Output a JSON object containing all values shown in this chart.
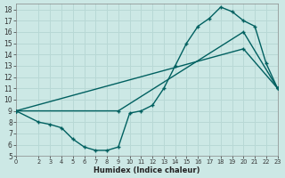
{
  "xlabel": "Humidex (Indice chaleur)",
  "bg_color": "#cce8e5",
  "grid_color": "#b8d8d5",
  "line_color": "#006060",
  "xlim": [
    0,
    23
  ],
  "ylim": [
    5,
    18.5
  ],
  "xticks": [
    0,
    2,
    3,
    4,
    5,
    6,
    7,
    8,
    9,
    10,
    11,
    12,
    13,
    14,
    15,
    16,
    17,
    18,
    19,
    20,
    21,
    22,
    23
  ],
  "yticks": [
    5,
    6,
    7,
    8,
    9,
    10,
    11,
    12,
    13,
    14,
    15,
    16,
    17,
    18
  ],
  "line1_x": [
    0,
    2,
    3,
    4,
    5,
    6,
    7,
    8,
    9,
    10,
    11,
    12,
    13,
    14,
    15,
    16,
    17,
    18,
    19,
    20,
    21,
    22,
    23
  ],
  "line1_y": [
    9,
    8,
    7.8,
    7.5,
    6.5,
    5.8,
    5.5,
    5.5,
    5.8,
    8.8,
    9.0,
    9.5,
    11.0,
    13.0,
    15.0,
    16.5,
    17.2,
    18.2,
    17.8,
    17.0,
    16.5,
    13.2,
    11.0
  ],
  "line2_x": [
    0,
    20,
    23
  ],
  "line2_y": [
    9,
    14.5,
    11.0
  ],
  "line3_x": [
    0,
    9,
    20,
    23
  ],
  "line3_y": [
    9,
    9.0,
    16.0,
    11.0
  ]
}
